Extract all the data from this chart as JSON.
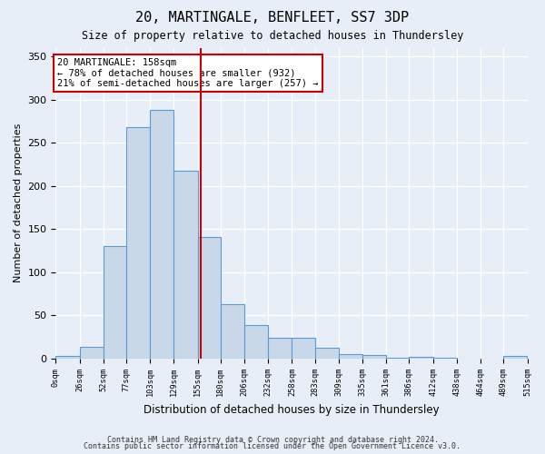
{
  "title1": "20, MARTINGALE, BENFLEET, SS7 3DP",
  "title2": "Size of property relative to detached houses in Thundersley",
  "xlabel": "Distribution of detached houses by size in Thundersley",
  "ylabel": "Number of detached properties",
  "footnote1": "Contains HM Land Registry data © Crown copyright and database right 2024.",
  "footnote2": "Contains public sector information licensed under the Open Government Licence v3.0.",
  "annotation_line1": "20 MARTINGALE: 158sqm",
  "annotation_line2": "← 78% of detached houses are smaller (932)",
  "annotation_line3": "21% of semi-detached houses are larger (257) →",
  "bar_edges": [
    0,
    26,
    52,
    77,
    103,
    129,
    155,
    180,
    206,
    232,
    258,
    283,
    309,
    335,
    361,
    386,
    412,
    438,
    464,
    489,
    515
  ],
  "bar_heights": [
    3,
    14,
    130,
    268,
    288,
    218,
    141,
    63,
    39,
    24,
    24,
    13,
    5,
    4,
    1,
    2,
    1,
    0,
    0,
    3
  ],
  "bar_color": "#c8d8e8",
  "bar_edge_color": "#5b9bd5",
  "vline_x": 158,
  "vline_color": "#cc0000",
  "annotation_box_color": "#cc0000",
  "ylim": [
    0,
    360
  ],
  "yticks": [
    0,
    50,
    100,
    150,
    200,
    250,
    300,
    350
  ],
  "bg_color": "#e8eef8",
  "plot_bg_color": "#e8eef8",
  "grid_color": "#ffffff"
}
